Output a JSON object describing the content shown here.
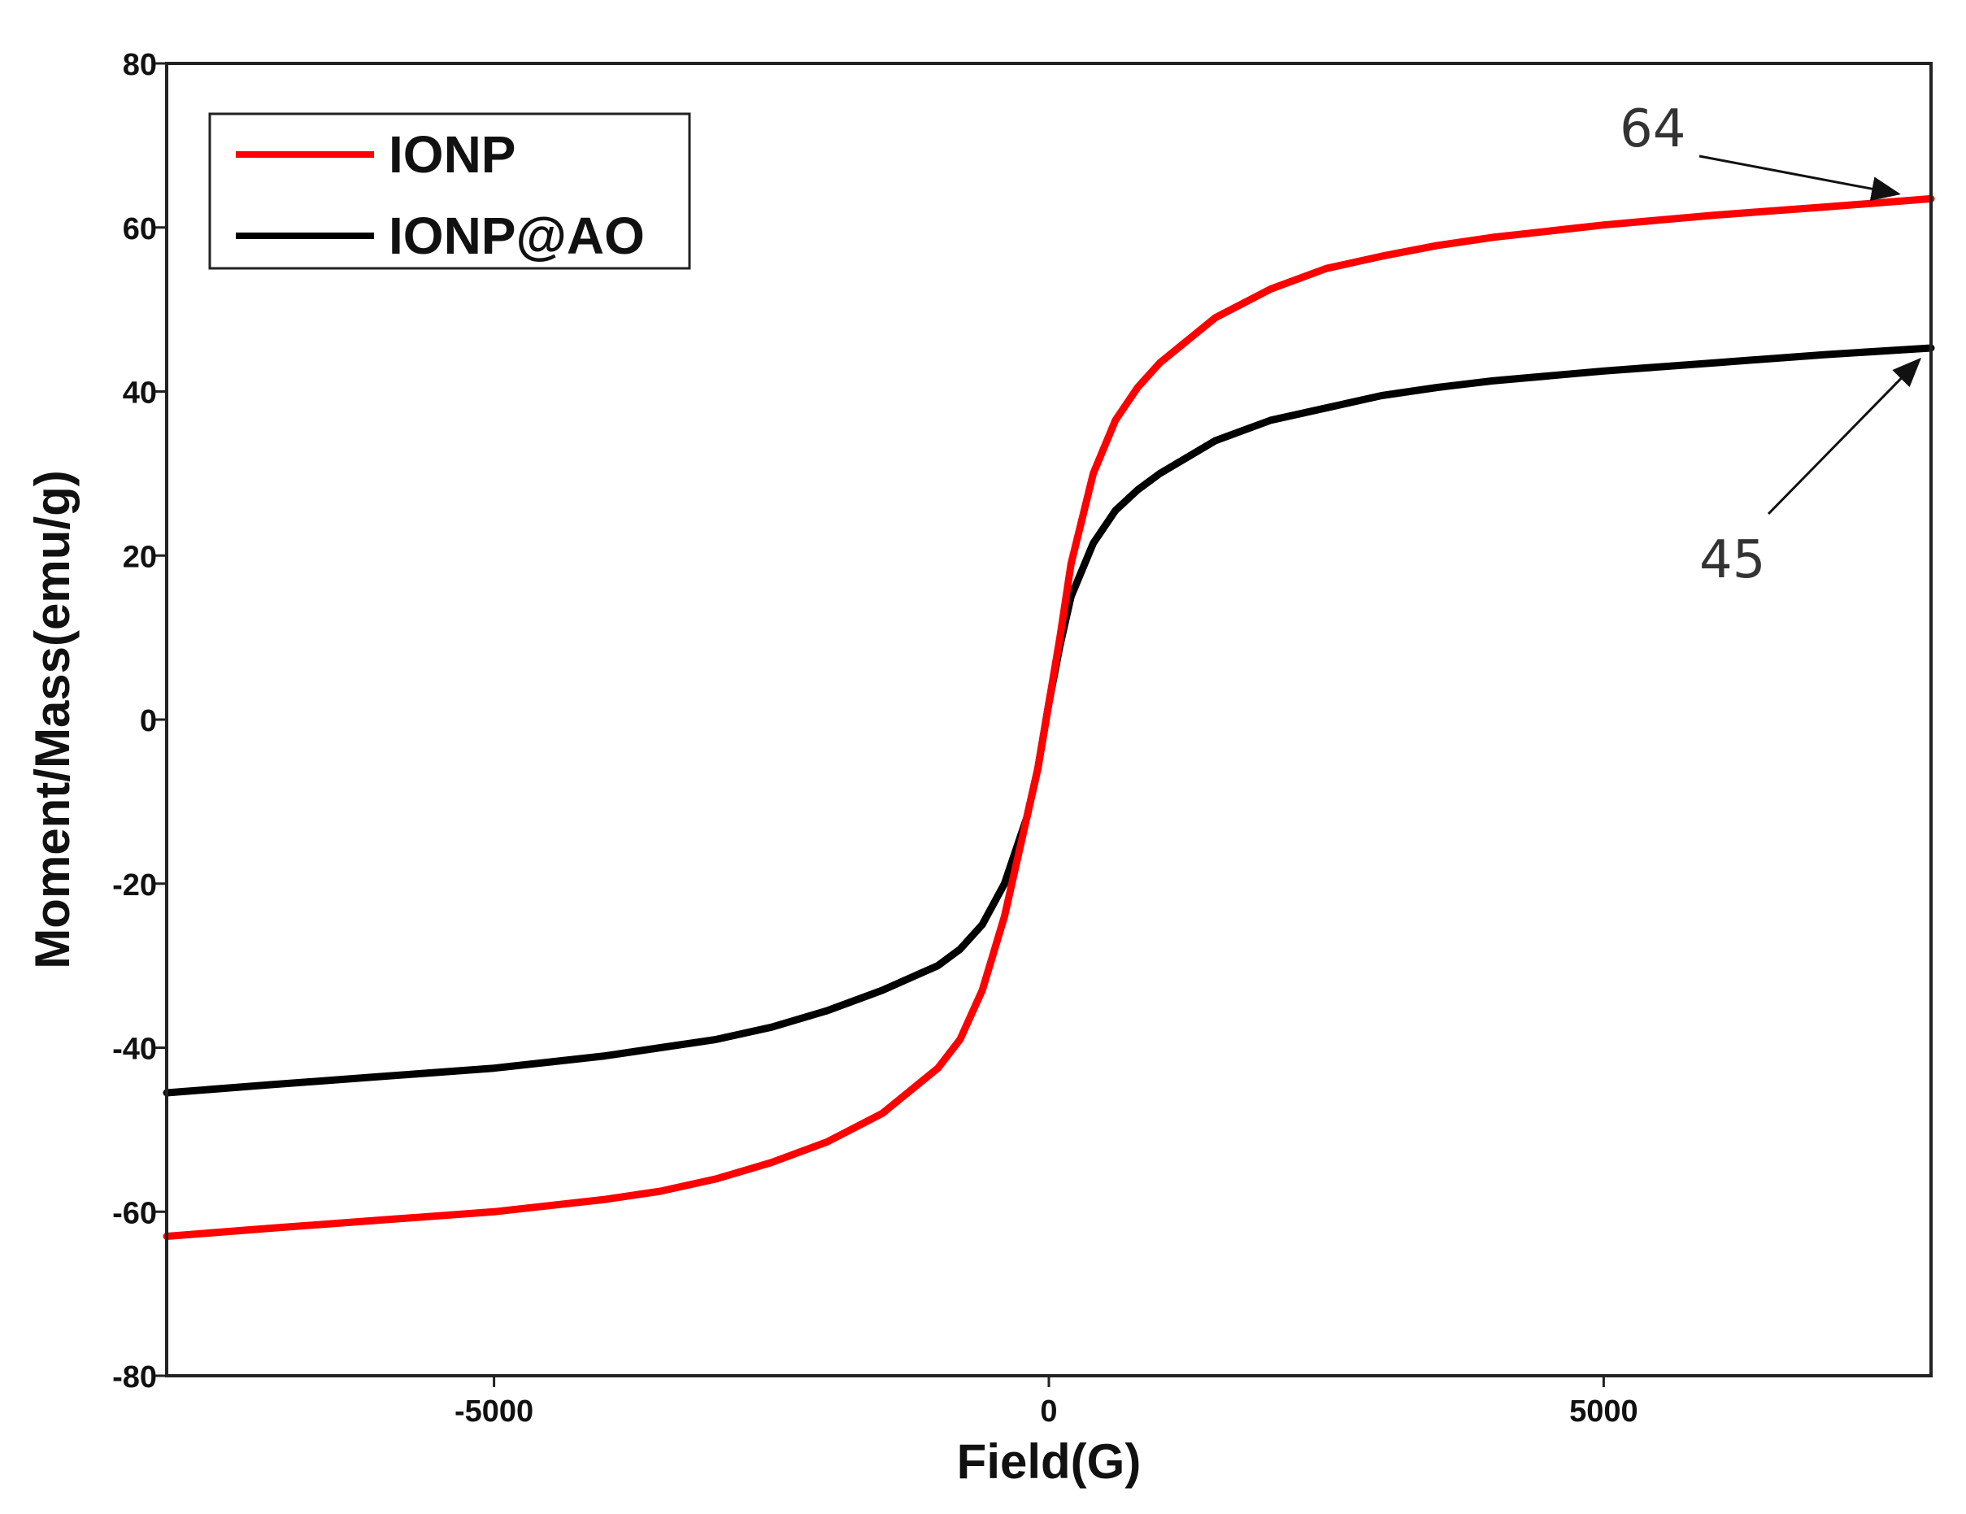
{
  "chart_data": {
    "type": "line",
    "xlabel": "Field(G)",
    "ylabel": "Moment/Mass(emu/g)",
    "xlim": [
      -7950,
      7950
    ],
    "ylim": [
      -80,
      80
    ],
    "x_ticks": [
      -5000,
      0,
      5000
    ],
    "y_ticks": [
      -80,
      -60,
      -40,
      -20,
      0,
      20,
      40,
      60,
      80
    ],
    "x_tick_labels": [
      "-5000",
      "0",
      "5000"
    ],
    "y_tick_labels": [
      "-80",
      "-60",
      "-40",
      "-20",
      "0",
      "20",
      "40",
      "60",
      "80"
    ],
    "grid": false,
    "legend": {
      "position": "top-left"
    },
    "series": [
      {
        "name": "IONP",
        "color": "#ff0000",
        "x": [
          -7950,
          -7000,
          -6000,
          -5000,
          -4000,
          -3500,
          -3000,
          -2500,
          -2000,
          -1500,
          -1000,
          -800,
          -600,
          -400,
          -200,
          -100,
          0,
          100,
          200,
          400,
          600,
          800,
          1000,
          1500,
          2000,
          2500,
          3000,
          3500,
          4000,
          5000,
          6000,
          7000,
          7950
        ],
        "y": [
          -63,
          -62,
          -61,
          -60,
          -58.5,
          -57.5,
          -56,
          -54,
          -51.5,
          -48,
          -42.5,
          -39,
          -33,
          -24,
          -12,
          -6,
          2,
          10,
          19,
          30,
          36.5,
          40.5,
          43.5,
          49,
          52.5,
          55,
          56.5,
          57.8,
          58.8,
          60.3,
          61.5,
          62.5,
          63.5
        ]
      },
      {
        "name": "IONP@AO",
        "color": "#000000",
        "x": [
          -7950,
          -7000,
          -6000,
          -5000,
          -4000,
          -3500,
          -3000,
          -2500,
          -2000,
          -1500,
          -1000,
          -800,
          -600,
          -400,
          -200,
          -100,
          0,
          100,
          200,
          400,
          600,
          800,
          1000,
          1500,
          2000,
          2500,
          3000,
          3500,
          4000,
          5000,
          6000,
          7000,
          7950
        ],
        "y": [
          -45.5,
          -44.5,
          -43.5,
          -42.5,
          -41,
          -40,
          -39,
          -37.5,
          -35.5,
          -33,
          -30,
          -28,
          -25,
          -20,
          -12,
          -6,
          2,
          9,
          15,
          21.5,
          25.5,
          28,
          30,
          34,
          36.5,
          38,
          39.5,
          40.5,
          41.3,
          42.5,
          43.5,
          44.5,
          45.3
        ]
      }
    ],
    "annotations": [
      {
        "text": "64",
        "series": "IONP",
        "x": 7950,
        "y": 63.5
      },
      {
        "text": "45",
        "series": "IONP@AO",
        "x": 7950,
        "y": 45.3
      }
    ]
  }
}
